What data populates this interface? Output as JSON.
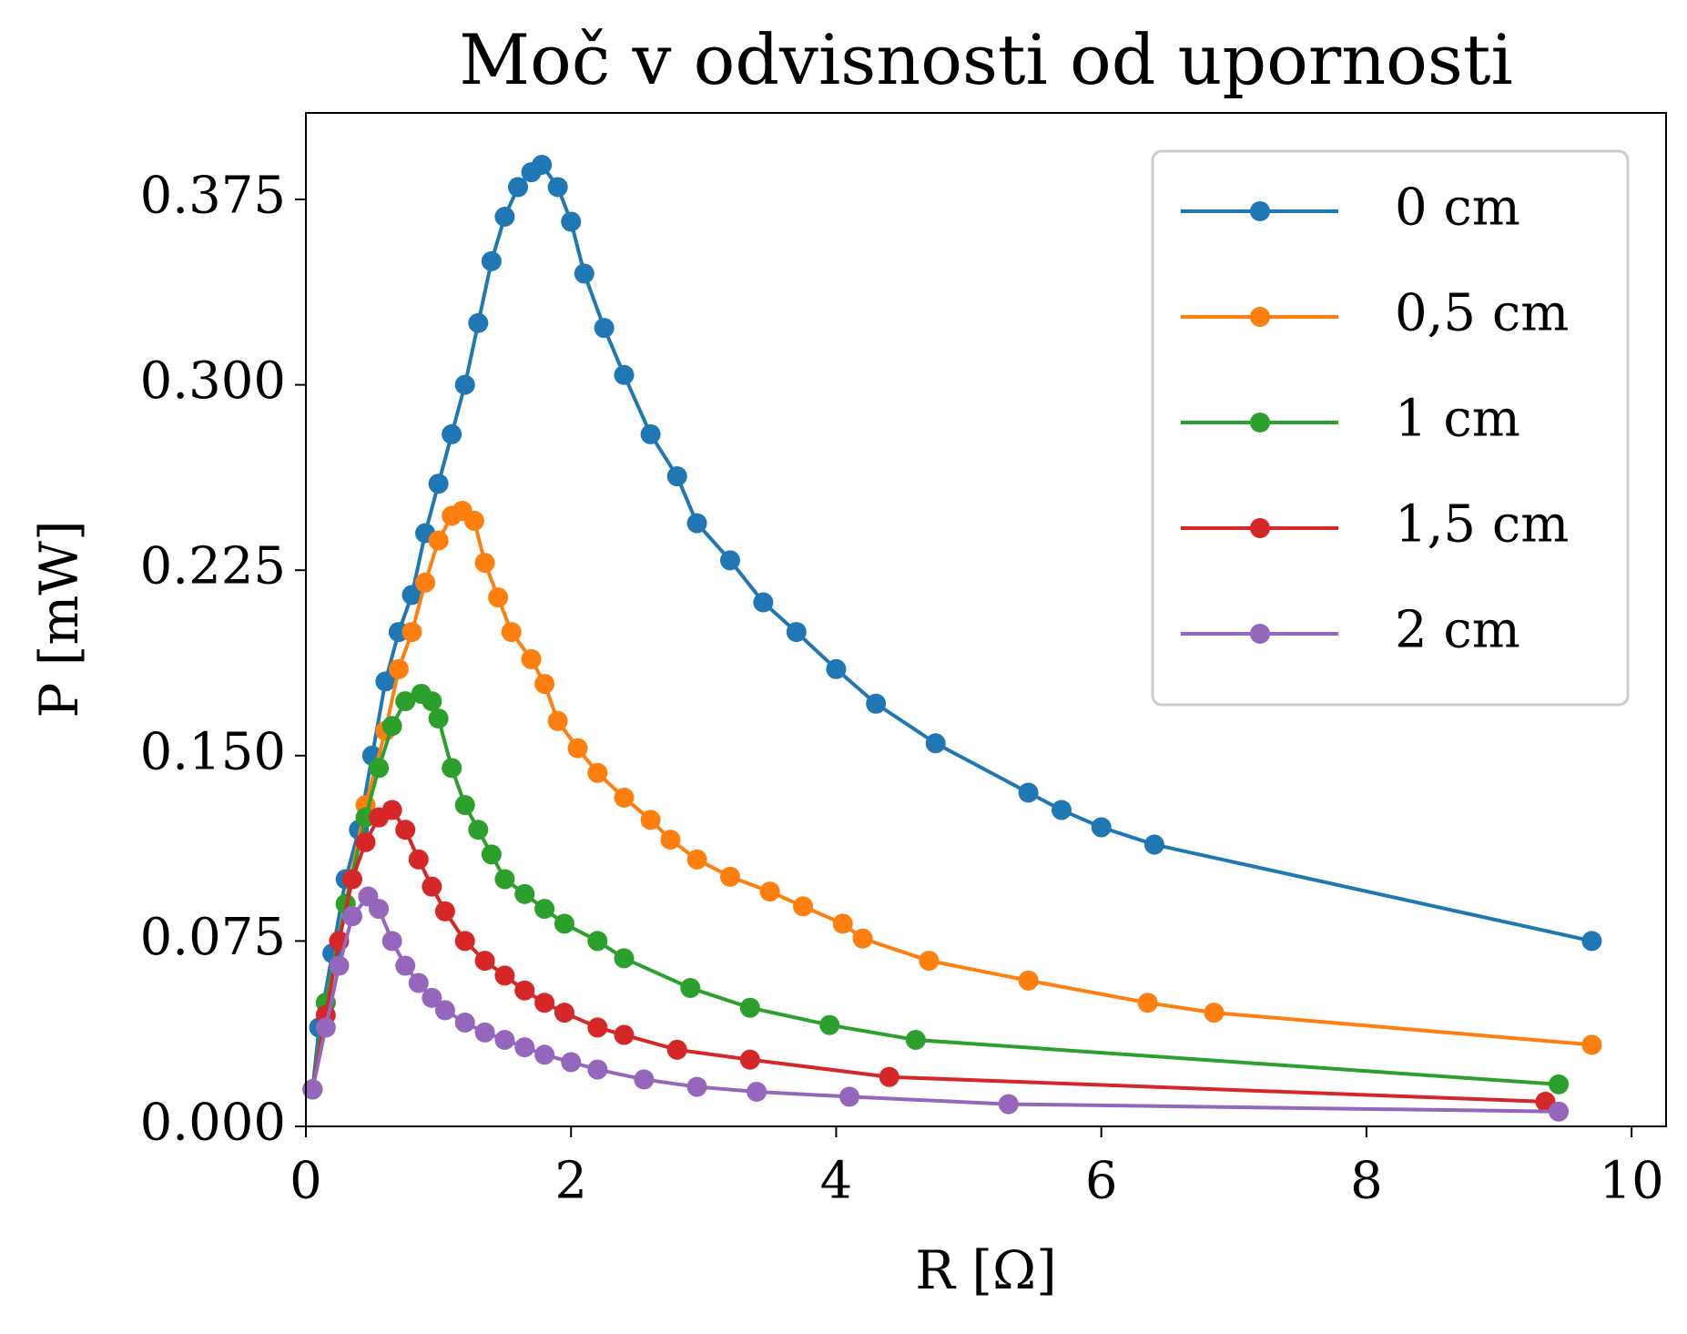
{
  "chart_data": {
    "type": "line",
    "title": "Moč v odvisnosti od upornosti",
    "x_label": "R [Ω]",
    "y_label": "P [mW]",
    "xlim": [
      0,
      10.26
    ],
    "ylim": [
      0,
      0.41
    ],
    "xticks": [
      0,
      2,
      4,
      6,
      8,
      10
    ],
    "yticks": [
      {
        "value": 0,
        "label": "0.000"
      },
      {
        "value": 0.075,
        "label": "0.075"
      },
      {
        "value": 0.15,
        "label": "0.150"
      },
      {
        "value": 0.225,
        "label": "0.225"
      },
      {
        "value": 0.3,
        "label": "0.300"
      },
      {
        "value": 0.375,
        "label": "0.375"
      }
    ],
    "legend": "upper right",
    "series": [
      {
        "name": "0 cm",
        "color": "#1f77b4",
        "x": [
          0.05,
          0.1,
          0.2,
          0.3,
          0.4,
          0.5,
          0.6,
          0.7,
          0.8,
          0.9,
          1.0,
          1.1,
          1.2,
          1.3,
          1.4,
          1.5,
          1.6,
          1.7,
          1.78,
          1.9,
          2.0,
          2.1,
          2.25,
          2.4,
          2.6,
          2.8,
          2.95,
          3.2,
          3.45,
          3.7,
          4.0,
          4.3,
          4.75,
          5.45,
          5.7,
          6.0,
          6.4,
          9.7
        ],
        "values": [
          0.015,
          0.04,
          0.07,
          0.1,
          0.12,
          0.15,
          0.18,
          0.2,
          0.215,
          0.24,
          0.26,
          0.28,
          0.3,
          0.325,
          0.35,
          0.368,
          0.38,
          0.386,
          0.389,
          0.38,
          0.366,
          0.345,
          0.323,
          0.304,
          0.28,
          0.263,
          0.244,
          0.229,
          0.212,
          0.2,
          0.185,
          0.171,
          0.155,
          0.135,
          0.128,
          0.121,
          0.114,
          0.075
        ]
      },
      {
        "name": "0,5 cm",
        "color": "#ff7f0e",
        "x": [
          0.05,
          0.15,
          0.3,
          0.45,
          0.6,
          0.7,
          0.8,
          0.9,
          1.0,
          1.1,
          1.18,
          1.27,
          1.35,
          1.45,
          1.55,
          1.7,
          1.8,
          1.9,
          2.05,
          2.2,
          2.4,
          2.6,
          2.75,
          2.95,
          3.2,
          3.5,
          3.75,
          4.05,
          4.2,
          4.7,
          5.45,
          6.35,
          6.85,
          9.7
        ],
        "values": [
          0.015,
          0.05,
          0.09,
          0.13,
          0.16,
          0.185,
          0.2,
          0.22,
          0.237,
          0.247,
          0.249,
          0.245,
          0.228,
          0.214,
          0.2,
          0.189,
          0.179,
          0.164,
          0.153,
          0.143,
          0.133,
          0.124,
          0.116,
          0.108,
          0.101,
          0.095,
          0.089,
          0.082,
          0.076,
          0.067,
          0.059,
          0.05,
          0.046,
          0.033
        ]
      },
      {
        "name": "1 cm",
        "color": "#2ca02c",
        "x": [
          0.05,
          0.15,
          0.3,
          0.45,
          0.55,
          0.65,
          0.75,
          0.87,
          0.95,
          1.0,
          1.1,
          1.2,
          1.3,
          1.4,
          1.5,
          1.65,
          1.8,
          1.95,
          2.2,
          2.4,
          2.9,
          3.35,
          3.95,
          4.6,
          9.45
        ],
        "values": [
          0.015,
          0.05,
          0.09,
          0.125,
          0.145,
          0.162,
          0.172,
          0.175,
          0.172,
          0.165,
          0.145,
          0.13,
          0.12,
          0.11,
          0.1,
          0.094,
          0.088,
          0.082,
          0.075,
          0.068,
          0.056,
          0.048,
          0.041,
          0.035,
          0.017
        ]
      },
      {
        "name": "1,5 cm",
        "color": "#d62728",
        "x": [
          0.05,
          0.15,
          0.25,
          0.35,
          0.45,
          0.55,
          0.65,
          0.75,
          0.85,
          0.95,
          1.05,
          1.2,
          1.35,
          1.5,
          1.65,
          1.8,
          1.95,
          2.2,
          2.4,
          2.8,
          3.35,
          4.4,
          9.35
        ],
        "values": [
          0.015,
          0.045,
          0.075,
          0.1,
          0.115,
          0.125,
          0.128,
          0.12,
          0.108,
          0.097,
          0.087,
          0.075,
          0.067,
          0.061,
          0.055,
          0.05,
          0.046,
          0.04,
          0.037,
          0.031,
          0.027,
          0.02,
          0.01
        ]
      },
      {
        "name": "2 cm",
        "color": "#9467bd",
        "x": [
          0.05,
          0.15,
          0.25,
          0.35,
          0.47,
          0.55,
          0.65,
          0.75,
          0.85,
          0.95,
          1.05,
          1.2,
          1.35,
          1.5,
          1.65,
          1.8,
          2.0,
          2.2,
          2.55,
          2.95,
          3.4,
          4.1,
          5.3,
          9.45
        ],
        "values": [
          0.015,
          0.04,
          0.065,
          0.085,
          0.093,
          0.088,
          0.075,
          0.065,
          0.058,
          0.052,
          0.047,
          0.042,
          0.038,
          0.035,
          0.032,
          0.029,
          0.026,
          0.023,
          0.019,
          0.016,
          0.014,
          0.012,
          0.009,
          0.006
        ]
      }
    ]
  }
}
